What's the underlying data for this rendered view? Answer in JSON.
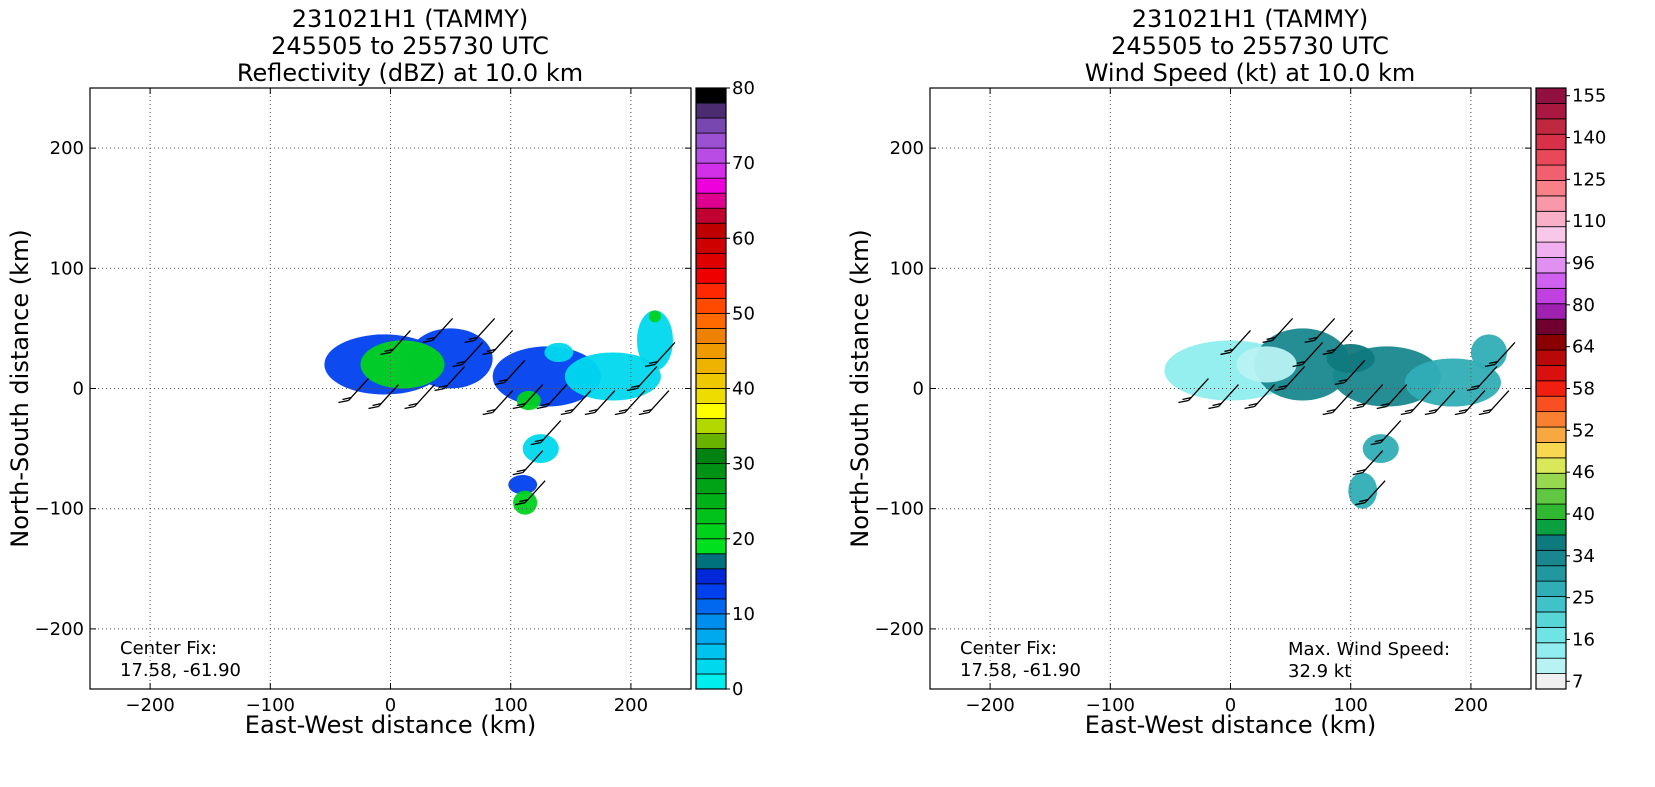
{
  "chart_data": [
    {
      "type": "heatmap",
      "title_lines": [
        "231021H1 (TAMMY)",
        "245505 to 255730 UTC",
        "Reflectivity (dBZ) at 10.0 km"
      ],
      "xlabel": "East-West distance (km)",
      "ylabel": "North-South distance (km)",
      "xlim": [
        -250,
        250
      ],
      "ylim": [
        -250,
        250
      ],
      "xticks": [
        -200,
        -100,
        0,
        100,
        200
      ],
      "yticks": [
        -200,
        -100,
        0,
        100,
        200
      ],
      "grid": true,
      "colorbar": {
        "min": 0,
        "max": 80,
        "tick_labels": [
          "0",
          "10",
          "20",
          "30",
          "40",
          "50",
          "60",
          "70",
          "80"
        ],
        "colors": [
          "#00eeee",
          "#00d8ee",
          "#00c2ee",
          "#00a8ee",
          "#008eee",
          "#0068ee",
          "#0040ee",
          "#0028d8",
          "#00727e",
          "#00e01e",
          "#00d21c",
          "#00c21a",
          "#00b218",
          "#00a216",
          "#009214",
          "#008212",
          "#6ab200",
          "#b2d800",
          "#ffff00",
          "#eedc00",
          "#eec800",
          "#eeb200",
          "#ee9a00",
          "#ee8200",
          "#ff6a00",
          "#ff4a00",
          "#ff2800",
          "#ee0000",
          "#de0000",
          "#ce0000",
          "#be0000",
          "#c00030",
          "#e00090",
          "#ee00dc",
          "#d230e8",
          "#b84ce4",
          "#9c50d2",
          "#7848b0",
          "#4c2c70",
          "#000000"
        ]
      },
      "center_fix_label": "Center Fix:",
      "center_fix": "17.58, -61.90",
      "regions": [
        {
          "cx": -5,
          "cy": 20,
          "rx": 50,
          "ry": 25,
          "band": "blue"
        },
        {
          "cx": 50,
          "cy": 25,
          "rx": 35,
          "ry": 25,
          "band": "blue"
        },
        {
          "cx": 130,
          "cy": 10,
          "rx": 45,
          "ry": 25,
          "band": "blue"
        },
        {
          "cx": 185,
          "cy": 10,
          "rx": 40,
          "ry": 20,
          "band": "cyan"
        },
        {
          "cx": 220,
          "cy": 40,
          "rx": 15,
          "ry": 25,
          "band": "cyan"
        },
        {
          "cx": 125,
          "cy": -50,
          "rx": 15,
          "ry": 12,
          "band": "cyan"
        },
        {
          "cx": 110,
          "cy": -80,
          "rx": 12,
          "ry": 8,
          "band": "blue"
        },
        {
          "cx": 112,
          "cy": -95,
          "rx": 10,
          "ry": 10,
          "band": "green"
        },
        {
          "cx": 10,
          "cy": 20,
          "rx": 35,
          "ry": 20,
          "band": "green"
        },
        {
          "cx": 115,
          "cy": -10,
          "rx": 10,
          "ry": 8,
          "band": "green"
        },
        {
          "cx": 220,
          "cy": 60,
          "rx": 5,
          "ry": 5,
          "band": "green"
        },
        {
          "cx": 140,
          "cy": 30,
          "rx": 12,
          "ry": 8,
          "band": "cyan"
        }
      ],
      "barbs": [
        {
          "x": -35,
          "y": -10
        },
        {
          "x": -10,
          "y": -15
        },
        {
          "x": 20,
          "y": -15
        },
        {
          "x": 45,
          "y": 0
        },
        {
          "x": 85,
          "y": -20
        },
        {
          "x": 110,
          "y": -15
        },
        {
          "x": 130,
          "y": -15
        },
        {
          "x": 150,
          "y": -20
        },
        {
          "x": 170,
          "y": -20
        },
        {
          "x": 195,
          "y": -20
        },
        {
          "x": 215,
          "y": -20
        },
        {
          "x": 205,
          "y": 0
        },
        {
          "x": 0,
          "y": 30
        },
        {
          "x": 35,
          "y": 40
        },
        {
          "x": 70,
          "y": 40
        },
        {
          "x": 85,
          "y": 30
        },
        {
          "x": 125,
          "y": -45
        },
        {
          "x": 110,
          "y": -70
        },
        {
          "x": 112,
          "y": -95
        },
        {
          "x": 220,
          "y": 20
        },
        {
          "x": 60,
          "y": 20
        },
        {
          "x": 95,
          "y": 5
        }
      ]
    },
    {
      "type": "heatmap",
      "title_lines": [
        "231021H1 (TAMMY)",
        "245505 to 255730 UTC",
        "Wind Speed (kt) at 10.0 km"
      ],
      "xlabel": "East-West distance (km)",
      "ylabel": "North-South distance (km)",
      "xlim": [
        -250,
        250
      ],
      "ylim": [
        -250,
        250
      ],
      "xticks": [
        -200,
        -100,
        0,
        100,
        200
      ],
      "yticks": [
        -200,
        -100,
        0,
        100,
        200
      ],
      "grid": true,
      "colorbar": {
        "tick_labels": [
          "7",
          "16",
          "25",
          "34",
          "40",
          "46",
          "52",
          "58",
          "64",
          "80",
          "96",
          "110",
          "125",
          "140",
          "155"
        ],
        "colors": [
          "#f0f0f0",
          "#b8f2f2",
          "#90eeee",
          "#70e4e4",
          "#58d6d6",
          "#40c2c8",
          "#30aeb6",
          "#20989e",
          "#18888e",
          "#0f7a7e",
          "#0aa040",
          "#30b830",
          "#60c840",
          "#98d850",
          "#d8e858",
          "#f8d850",
          "#f8a840",
          "#f88030",
          "#f85020",
          "#f02010",
          "#d81010",
          "#b80808",
          "#8a0000",
          "#700030",
          "#a020b0",
          "#c040e0",
          "#d060f0",
          "#e090f0",
          "#f0b0f0",
          "#f8c8e8",
          "#f8b0c8",
          "#f898a8",
          "#f88088",
          "#f06070",
          "#e84858",
          "#d83048",
          "#c02840",
          "#a81840",
          "#901040"
        ]
      },
      "center_fix_label": "Center Fix:",
      "center_fix": "17.58, -61.90",
      "max_wind_label": "Max. Wind Speed:",
      "max_wind": "32.9 kt",
      "regions": [
        {
          "cx": 0,
          "cy": 15,
          "rx": 55,
          "ry": 25,
          "band": "light"
        },
        {
          "cx": 60,
          "cy": 20,
          "rx": 40,
          "ry": 30,
          "band": "teal"
        },
        {
          "cx": 130,
          "cy": 10,
          "rx": 45,
          "ry": 25,
          "band": "teal"
        },
        {
          "cx": 185,
          "cy": 5,
          "rx": 40,
          "ry": 20,
          "band": "mid"
        },
        {
          "cx": 215,
          "cy": 30,
          "rx": 15,
          "ry": 15,
          "band": "mid"
        },
        {
          "cx": 125,
          "cy": -50,
          "rx": 15,
          "ry": 12,
          "band": "mid"
        },
        {
          "cx": 110,
          "cy": -85,
          "rx": 12,
          "ry": 15,
          "band": "mid"
        },
        {
          "cx": 30,
          "cy": 20,
          "rx": 25,
          "ry": 15,
          "band": "pale"
        },
        {
          "cx": 100,
          "cy": 25,
          "rx": 20,
          "ry": 12,
          "band": "dark"
        }
      ],
      "barbs": [
        {
          "x": -35,
          "y": -10
        },
        {
          "x": -10,
          "y": -15
        },
        {
          "x": 20,
          "y": -15
        },
        {
          "x": 45,
          "y": 0
        },
        {
          "x": 85,
          "y": -20
        },
        {
          "x": 110,
          "y": -15
        },
        {
          "x": 130,
          "y": -15
        },
        {
          "x": 150,
          "y": -20
        },
        {
          "x": 170,
          "y": -20
        },
        {
          "x": 195,
          "y": -20
        },
        {
          "x": 215,
          "y": -20
        },
        {
          "x": 205,
          "y": 0
        },
        {
          "x": 0,
          "y": 30
        },
        {
          "x": 35,
          "y": 40
        },
        {
          "x": 70,
          "y": 40
        },
        {
          "x": 85,
          "y": 30
        },
        {
          "x": 125,
          "y": -45
        },
        {
          "x": 110,
          "y": -70
        },
        {
          "x": 112,
          "y": -95
        },
        {
          "x": 220,
          "y": 20
        },
        {
          "x": 60,
          "y": 20
        },
        {
          "x": 95,
          "y": 5
        }
      ]
    }
  ]
}
